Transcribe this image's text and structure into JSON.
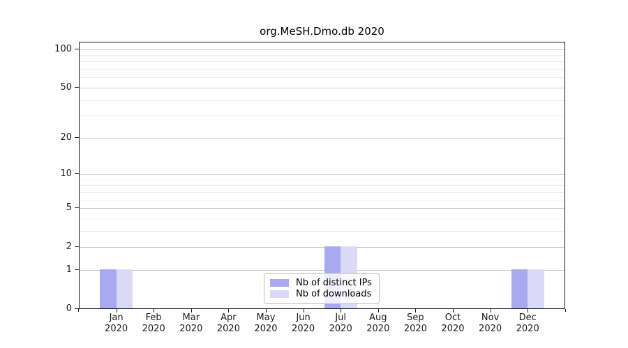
{
  "figure": {
    "title": "org.MeSH.Dmo.db 2020"
  },
  "chart_data": {
    "type": "bar",
    "title": "org.MeSH.Dmo.db 2020",
    "categories": [
      "Jan",
      "Feb",
      "Mar",
      "Apr",
      "May",
      "Jun",
      "Jul",
      "Aug",
      "Sep",
      "Oct",
      "Nov",
      "Dec"
    ],
    "category_year": "2020",
    "series": [
      {
        "name": "Nb of distinct IPs",
        "color": "#a9a9f1",
        "values": [
          1,
          0,
          0,
          0,
          0,
          0,
          2,
          0,
          0,
          0,
          0,
          1
        ]
      },
      {
        "name": "Nb of downloads",
        "color": "#dadaf8",
        "values": [
          1,
          0,
          0,
          0,
          0,
          0,
          2,
          0,
          0,
          0,
          0,
          1
        ]
      }
    ],
    "xlabel": "",
    "ylabel": "",
    "y_axis": {
      "scale": "log10(value+1)",
      "major_ticks": [
        0,
        1,
        2,
        5,
        10,
        20,
        50,
        100
      ],
      "minor_gridlines": [
        3,
        4,
        6,
        7,
        8,
        9,
        30,
        40,
        60,
        70,
        80,
        90
      ],
      "range": [
        0,
        115
      ]
    },
    "grid": "horizontal",
    "legend_position": "lower-center"
  },
  "colors": {
    "bar_distinct_ips": "#a9a9f1",
    "bar_downloads": "#dadaf8",
    "grid_major": "#cbcbcb",
    "grid_minor": "#ececec",
    "axis": "#1a1a1a",
    "legend_border": "#b8b8b8",
    "background": "#ffffff"
  }
}
